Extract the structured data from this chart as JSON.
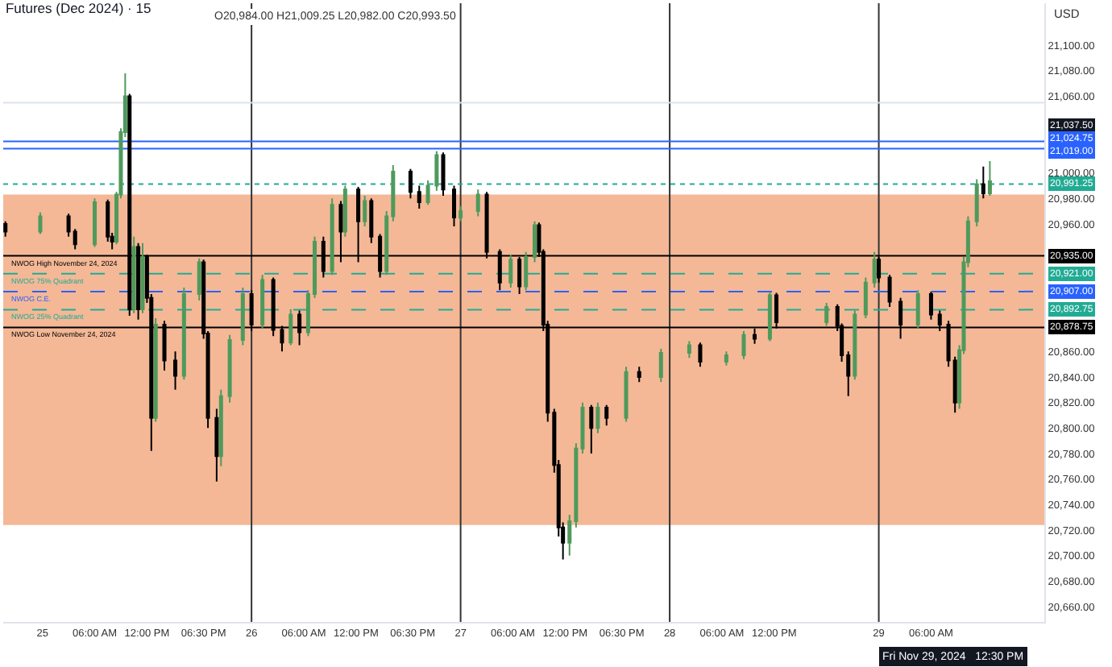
{
  "chart_data": {
    "type": "candlestick",
    "title": "Futures (Dec 2024) · 15",
    "subtitle": "O20,984.00 H21,009.25 L20,982.00 C20,993.50",
    "xlim": [
      "2024-11-24T19:30",
      "2024-11-29T19:00"
    ],
    "xticks": [
      {
        "value": "2024-11-25",
        "label": "25"
      },
      {
        "value": "2024-11-25T06:00",
        "label": "06:00 AM"
      },
      {
        "value": "2024-11-25T12:00",
        "label": "12:00 PM"
      },
      {
        "value": "2024-11-25T18:30",
        "label": "06:30 PM"
      },
      {
        "value": "2024-11-26",
        "label": "26"
      },
      {
        "value": "2024-11-26T06:00",
        "label": "06:00 AM"
      },
      {
        "value": "2024-11-26T12:00",
        "label": "12:00 PM"
      },
      {
        "value": "2024-11-26T18:30",
        "label": "06:30 PM"
      },
      {
        "value": "2024-11-27",
        "label": "27"
      },
      {
        "value": "2024-11-27T06:00",
        "label": "06:00 AM"
      },
      {
        "value": "2024-11-27T12:00",
        "label": "12:00 PM"
      },
      {
        "value": "2024-11-27T18:30",
        "label": "06:30 PM"
      },
      {
        "value": "2024-11-28",
        "label": "28"
      },
      {
        "value": "2024-11-28T06:00",
        "label": "06:00 AM"
      },
      {
        "value": "2024-11-28T12:00",
        "label": "12:00 PM"
      },
      {
        "value": "2024-11-29",
        "label": "29"
      },
      {
        "value": "2024-11-29T06:00",
        "label": "06:00 AM"
      }
    ],
    "ylim": [
      20648,
      21133
    ],
    "yticks": [
      {
        "value": 20660,
        "label": "20,660.00"
      },
      {
        "value": 20680,
        "label": "20,680.00"
      },
      {
        "value": 20700,
        "label": "20,700.00"
      },
      {
        "value": 20720,
        "label": "20,720.00"
      },
      {
        "value": 20740,
        "label": "20,740.00"
      },
      {
        "value": 20760,
        "label": "20,760.00"
      },
      {
        "value": 20780,
        "label": "20,780.00"
      },
      {
        "value": 20800,
        "label": "20,800.00"
      },
      {
        "value": 20820,
        "label": "20,820.00"
      },
      {
        "value": 20840,
        "label": "20,840.00"
      },
      {
        "value": 20860,
        "label": "20,860.00"
      },
      {
        "value": 20960,
        "label": "20,960.00"
      },
      {
        "value": 20980,
        "label": "20,980.00"
      },
      {
        "value": 21000,
        "label": "21,000.00"
      },
      {
        "value": 21060,
        "label": "21,060.00"
      },
      {
        "value": 21080,
        "label": "21,080.00"
      },
      {
        "value": 21100,
        "label": "21,100.00"
      }
    ],
    "series": [
      {
        "color": "#4f9a5c",
        "x": [
          "2024-11-24T23:45",
          "2024-11-25T06:00",
          "2024-11-25T08:30",
          "2024-11-25T09:00",
          "2024-11-25T09:30",
          "2024-11-25T10:30",
          "2024-11-25T11:30",
          "2024-11-25T13:00",
          "2024-11-25T16:15",
          "2024-11-25T18:00",
          "2024-11-25T20:30",
          "2024-11-25T21:30",
          "2024-11-25T23:00",
          "2024-11-26T01:15",
          "2024-11-26T04:30",
          "2024-11-26T06:30",
          "2024-11-26T07:15",
          "2024-11-26T09:15",
          "2024-11-26T10:45",
          "2024-11-26T13:00",
          "2024-11-26T15:30",
          "2024-11-26T16:15",
          "2024-11-26T20:15",
          "2024-11-26T21:15",
          "2024-11-27T00:00",
          "2024-11-27T02:00",
          "2024-11-27T05:45",
          "2024-11-27T07:30",
          "2024-11-27T08:30",
          "2024-11-27T12:30",
          "2024-11-27T13:15",
          "2024-11-27T14:00",
          "2024-11-27T15:45",
          "2024-11-27T19:00",
          "2024-11-27T23:00",
          "2024-11-28T02:15",
          "2024-11-28T06:30",
          "2024-11-28T08:30",
          "2024-11-28T11:30",
          "2024-11-28T18:00",
          "2024-11-28T21:15",
          "2024-11-28T22:30",
          "2024-11-28T23:30",
          "2024-11-29T04:30",
          "2024-11-29T09:15",
          "2024-11-29T09:45",
          "2024-11-29T10:15",
          "2024-11-29T11:15",
          "2024-11-29T12:45"
        ],
        "ohlc": [
          [
            20954,
            20969,
            20952,
            20966
          ],
          [
            20944,
            20980,
            20942,
            20977
          ],
          [
            20946,
            20985,
            20944,
            20983
          ],
          [
            20983,
            21035,
            20980,
            21032
          ],
          [
            21032,
            21078,
            21028,
            21060
          ],
          [
            20893,
            20950,
            20890,
            20942
          ],
          [
            20893,
            20945,
            20890,
            20934
          ],
          [
            20808,
            20886,
            20805,
            20881
          ],
          [
            20841,
            20910,
            20838,
            20905
          ],
          [
            20905,
            20933,
            20900,
            20930
          ],
          [
            20778,
            20830,
            20770,
            20825
          ],
          [
            20825,
            20873,
            20820,
            20869
          ],
          [
            20869,
            20910,
            20865,
            20905
          ],
          [
            20881,
            20920,
            20878,
            20916
          ],
          [
            20867,
            20893,
            20865,
            20889
          ],
          [
            20875,
            20908,
            20872,
            20905
          ],
          [
            20905,
            20950,
            20902,
            20946
          ],
          [
            20923,
            20980,
            20920,
            20975
          ],
          [
            20954,
            20990,
            20950,
            20987
          ],
          [
            20962,
            20982,
            20958,
            20978
          ],
          [
            20923,
            20970,
            20920,
            20966
          ],
          [
            20966,
            21006,
            20962,
            21001
          ],
          [
            20977,
            20994,
            20975,
            20990
          ],
          [
            20990,
            21017,
            20986,
            21014
          ],
          [
            20965,
            20974,
            20962,
            20970
          ],
          [
            20970,
            20987,
            20966,
            20983
          ],
          [
            20914,
            20936,
            20910,
            20932
          ],
          [
            20911,
            20938,
            20908,
            20934
          ],
          [
            20934,
            20962,
            20930,
            20959
          ],
          [
            20710,
            20732,
            20700,
            20727
          ],
          [
            20727,
            20788,
            20722,
            20784
          ],
          [
            20784,
            20820,
            20780,
            20816
          ],
          [
            20800,
            20820,
            20796,
            20816
          ],
          [
            20808,
            20848,
            20805,
            20844
          ],
          [
            20840,
            20862,
            20836,
            20859
          ],
          [
            20859,
            20868,
            20855,
            20865
          ],
          [
            20852,
            20860,
            20849,
            20857
          ],
          [
            20857,
            20876,
            20854,
            20873
          ],
          [
            20870,
            20907,
            20868,
            20904
          ],
          [
            20883,
            20898,
            20880,
            20895
          ],
          [
            20841,
            20892,
            20838,
            20889
          ],
          [
            20889,
            20918,
            20886,
            20914
          ],
          [
            20914,
            20938,
            20910,
            20932
          ],
          [
            20881,
            20908,
            20878,
            20905
          ],
          [
            20820,
            20865,
            20815,
            20861
          ],
          [
            20861,
            20934,
            20858,
            20930
          ],
          [
            20930,
            20966,
            20926,
            20962
          ],
          [
            20962,
            20995,
            20958,
            20991
          ],
          [
            20984,
            21009.25,
            20982,
            20993.5
          ]
        ]
      },
      {
        "color": "#000000",
        "x": [
          "2024-11-24T19:45",
          "2024-11-25T03:00",
          "2024-11-25T03:45",
          "2024-11-25T07:30",
          "2024-11-25T08:00",
          "2024-11-25T10:00",
          "2024-11-25T11:00",
          "2024-11-25T12:00",
          "2024-11-25T12:30",
          "2024-11-25T14:00",
          "2024-11-25T15:15",
          "2024-11-25T18:30",
          "2024-11-25T19:00",
          "2024-11-25T20:00",
          "2024-11-26T00:00",
          "2024-11-26T02:30",
          "2024-11-26T03:30",
          "2024-11-26T05:30",
          "2024-11-26T08:15",
          "2024-11-26T10:15",
          "2024-11-26T12:15",
          "2024-11-26T13:45",
          "2024-11-26T14:45",
          "2024-11-26T18:15",
          "2024-11-26T19:15",
          "2024-11-26T22:00",
          "2024-11-26T23:15",
          "2024-11-27T03:00",
          "2024-11-27T04:30",
          "2024-11-27T06:45",
          "2024-11-27T09:00",
          "2024-11-27T09:30",
          "2024-11-27T10:00",
          "2024-11-27T10:45",
          "2024-11-27T11:15",
          "2024-11-27T11:45",
          "2024-11-27T15:00",
          "2024-11-27T16:45",
          "2024-11-27T20:30",
          "2024-11-28T03:30",
          "2024-11-28T09:45",
          "2024-11-28T12:15",
          "2024-11-28T19:15",
          "2024-11-28T19:45",
          "2024-11-28T20:30",
          "2024-11-29T00:00",
          "2024-11-29T01:15",
          "2024-11-29T02:30",
          "2024-11-29T06:00",
          "2024-11-29T07:00",
          "2024-11-29T08:00",
          "2024-11-29T08:45",
          "2024-11-29T12:00"
        ],
        "ohlc": [
          [
            20960,
            20962,
            20950,
            20954
          ],
          [
            20966,
            20968,
            20950,
            20954
          ],
          [
            20954,
            20956,
            20940,
            20944
          ],
          [
            20977,
            20979,
            20946,
            20950
          ],
          [
            20950,
            20953,
            20940,
            20946
          ],
          [
            21060,
            21062,
            20888,
            20893
          ],
          [
            20942,
            20945,
            20885,
            20893
          ],
          [
            20934,
            20936,
            20898,
            20902
          ],
          [
            20902,
            20905,
            20782,
            20808
          ],
          [
            20881,
            20884,
            20845,
            20853
          ],
          [
            20853,
            20860,
            20830,
            20841
          ],
          [
            20930,
            20932,
            20870,
            20874
          ],
          [
            20874,
            20876,
            20800,
            20808
          ],
          [
            20808,
            20815,
            20758,
            20778
          ],
          [
            20905,
            20908,
            20876,
            20881
          ],
          [
            20916,
            20918,
            20872,
            20877
          ],
          [
            20877,
            20880,
            20860,
            20867
          ],
          [
            20889,
            20892,
            20865,
            20875
          ],
          [
            20946,
            20950,
            20918,
            20923
          ],
          [
            20975,
            20978,
            20930,
            20954
          ],
          [
            20987,
            20989,
            20930,
            20962
          ],
          [
            20978,
            20980,
            20945,
            20950
          ],
          [
            20950,
            20952,
            20918,
            20923
          ],
          [
            21001,
            21003,
            20980,
            20985
          ],
          [
            20985,
            20990,
            20972,
            20977
          ],
          [
            21014,
            21016,
            20982,
            20987
          ],
          [
            20987,
            20990,
            20958,
            20965
          ],
          [
            20983,
            20985,
            20933,
            20938
          ],
          [
            20938,
            20940,
            20908,
            20914
          ],
          [
            20932,
            20934,
            20905,
            20911
          ],
          [
            20959,
            20961,
            20934,
            20938
          ],
          [
            20938,
            20940,
            20876,
            20881
          ],
          [
            20881,
            20884,
            20805,
            20812
          ],
          [
            20812,
            20815,
            20765,
            20771
          ],
          [
            20771,
            20775,
            20715,
            20722
          ],
          [
            20722,
            20726,
            20697,
            20710
          ],
          [
            20816,
            20818,
            20780,
            20800
          ],
          [
            20816,
            20818,
            20802,
            20808
          ],
          [
            20844,
            20848,
            20836,
            20840
          ],
          [
            20865,
            20867,
            20848,
            20852
          ],
          [
            20873,
            20878,
            20866,
            20870
          ],
          [
            20904,
            20906,
            20878,
            20883
          ],
          [
            20895,
            20897,
            20876,
            20880
          ],
          [
            20880,
            20882,
            20852,
            20857
          ],
          [
            20857,
            20860,
            20825,
            20841
          ],
          [
            20932,
            20934,
            20914,
            20918
          ],
          [
            20918,
            20920,
            20895,
            20899
          ],
          [
            20899,
            20902,
            20870,
            20881
          ],
          [
            20905,
            20907,
            20885,
            20889
          ],
          [
            20889,
            20892,
            20876,
            20881
          ],
          [
            20881,
            20884,
            20848,
            20853
          ],
          [
            20853,
            20856,
            20812,
            20820
          ],
          [
            20991,
            21005,
            20980,
            20984
          ]
        ]
      }
    ],
    "bands": [
      {
        "axis": "y",
        "from": 20724,
        "to": 20983,
        "color": "#f4b896"
      }
    ],
    "ref_lines": [
      {
        "axis": "x",
        "value": "2024-11-26",
        "color": "#333333"
      },
      {
        "axis": "x",
        "value": "2024-11-27",
        "color": "#333333"
      },
      {
        "axis": "x",
        "value": "2024-11-28",
        "color": "#333333"
      },
      {
        "axis": "x",
        "value": "2024-11-29",
        "color": "#333333"
      },
      {
        "axis": "y",
        "value": 21055,
        "color": "#dde3ec"
      },
      {
        "axis": "y",
        "value": 21024.75,
        "color": "#2962ff"
      },
      {
        "axis": "y",
        "value": 21019,
        "color": "#2962ff"
      },
      {
        "axis": "y",
        "value": 20991.25,
        "color": "#22ab94",
        "line_style": "dotted"
      },
      {
        "axis": "y",
        "value": 20935,
        "label": "NWOG High November 24, 2024",
        "color": "#000000"
      },
      {
        "axis": "y",
        "value": 20921,
        "label": "NWOG 75% Quadrant",
        "color": "#22ab94",
        "line_style": "dashed"
      },
      {
        "axis": "y",
        "value": 20907,
        "label": "NWOG C.E.",
        "color": "#2962ff",
        "line_style": "dashed"
      },
      {
        "axis": "y",
        "value": 20892.75,
        "label": "NWOG 25% Quadrant",
        "color": "#22ab94",
        "line_style": "dashed"
      },
      {
        "axis": "y",
        "value": 20878.75,
        "label": "NWOG Low November 24, 2024",
        "color": "#000000"
      }
    ],
    "annotations": [
      "USD",
      "Fri Nov 29, 2024   12:30 PM",
      {
        "text": "21,037.50",
        "y": 21037.5
      },
      {
        "text": "21,024.75",
        "y": 21024.75
      },
      {
        "text": "21,019.00",
        "y": 21019
      },
      {
        "text": "20,991.25",
        "y": 20991.25
      },
      {
        "text": "20,935.00",
        "y": 20935
      },
      {
        "text": "20,921.00",
        "y": 20921
      },
      {
        "text": "20,907.00",
        "y": 20907
      },
      {
        "text": "20,892.75",
        "y": 20892.75
      },
      {
        "text": "20,878.75",
        "y": 20878.75
      }
    ]
  }
}
